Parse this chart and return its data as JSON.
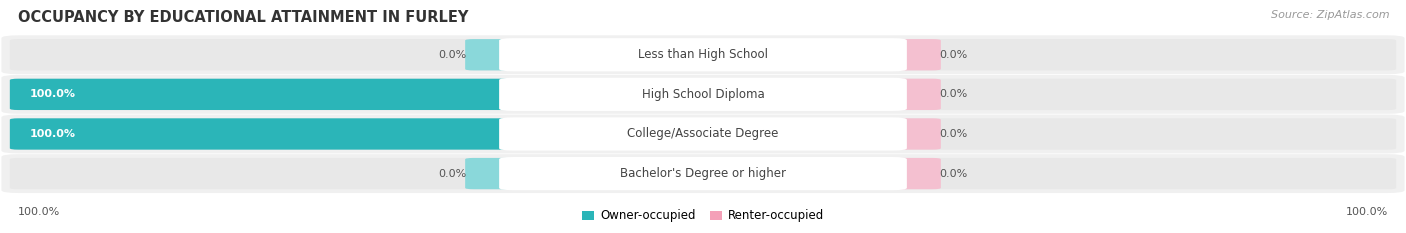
{
  "title": "OCCUPANCY BY EDUCATIONAL ATTAINMENT IN FURLEY",
  "source": "Source: ZipAtlas.com",
  "categories": [
    "Less than High School",
    "High School Diploma",
    "College/Associate Degree",
    "Bachelor's Degree or higher"
  ],
  "owner_values": [
    0.0,
    100.0,
    100.0,
    0.0
  ],
  "renter_values": [
    0.0,
    0.0,
    0.0,
    0.0
  ],
  "owner_color": "#2bb5b8",
  "owner_color_light": "#8ad8da",
  "renter_color": "#f4a0b8",
  "renter_color_light": "#f4c0d0",
  "bar_bg_color": "#e8e8e8",
  "row_bg_color": "#f0f0f0",
  "title_fontsize": 10.5,
  "label_fontsize": 8.5,
  "tick_fontsize": 8,
  "source_fontsize": 8,
  "legend_fontsize": 8.5,
  "fig_bg_color": "#ffffff"
}
